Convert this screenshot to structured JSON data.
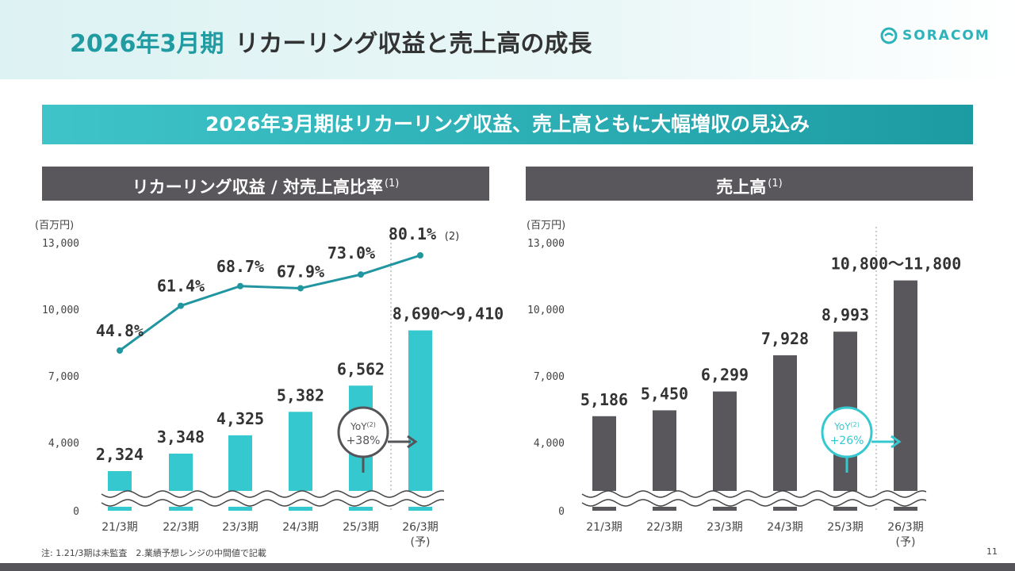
{
  "header": {
    "title_accent": "2026年3月期",
    "title_main": "リカーリング収益と売上高の成長",
    "logo_text": "SORACOM"
  },
  "banner": "2026年3月期はリカーリング収益、売上高ともに大幅増収の見込み",
  "left_panel": {
    "title": "リカーリング収益 / 対売上高比率",
    "title_note": "(1)"
  },
  "right_panel": {
    "title": "売上高",
    "title_note": "(1)"
  },
  "footnote": "注: 1.21/3期は未監査　2.業績予想レンジの中間値で記載",
  "page_number": "11",
  "colors": {
    "teal": "#35c8cf",
    "teal_dark": "#2196a0",
    "gray_bar": "#59575c"
  },
  "chart_data": [
    {
      "type": "bar",
      "unit_label": "(百万円)",
      "categories": [
        "21/3期",
        "22/3期",
        "23/3期",
        "24/3期",
        "25/3期",
        "26/3期"
      ],
      "category_note": "(予)",
      "yticks": [
        "0",
        "4,000",
        "7,000",
        "10,000",
        "13,000"
      ],
      "ytick_values": [
        0,
        4000,
        7000,
        10000,
        13000
      ],
      "axis_break": true,
      "values": [
        2324,
        3348,
        4325,
        5382,
        6562,
        9050
      ],
      "value_labels": [
        "2,324",
        "3,348",
        "4,325",
        "5,382",
        "6,562",
        "8,690〜9,410"
      ],
      "ratio_series": {
        "type": "line",
        "values": [
          44.8,
          61.4,
          68.7,
          67.9,
          73.0,
          80.1
        ],
        "labels": [
          "44.8%",
          "61.4%",
          "68.7%",
          "67.9%",
          "73.0%",
          "80.1%"
        ],
        "last_note": "(2)"
      },
      "yoy": {
        "label": "YoY",
        "note": "(2)",
        "value": "+38%"
      }
    },
    {
      "type": "bar",
      "unit_label": "(百万円)",
      "categories": [
        "21/3期",
        "22/3期",
        "23/3期",
        "24/3期",
        "25/3期",
        "26/3期"
      ],
      "category_note": "(予)",
      "yticks": [
        "0",
        "4,000",
        "7,000",
        "10,000",
        "13,000"
      ],
      "ytick_values": [
        0,
        4000,
        7000,
        10000,
        13000
      ],
      "axis_break": true,
      "values": [
        5186,
        5450,
        6299,
        7928,
        8993,
        11300
      ],
      "value_labels": [
        "5,186",
        "5,450",
        "6,299",
        "7,928",
        "8,993",
        "10,800〜11,800"
      ],
      "yoy": {
        "label": "YoY",
        "note": "(2)",
        "value": "+26%"
      }
    }
  ]
}
